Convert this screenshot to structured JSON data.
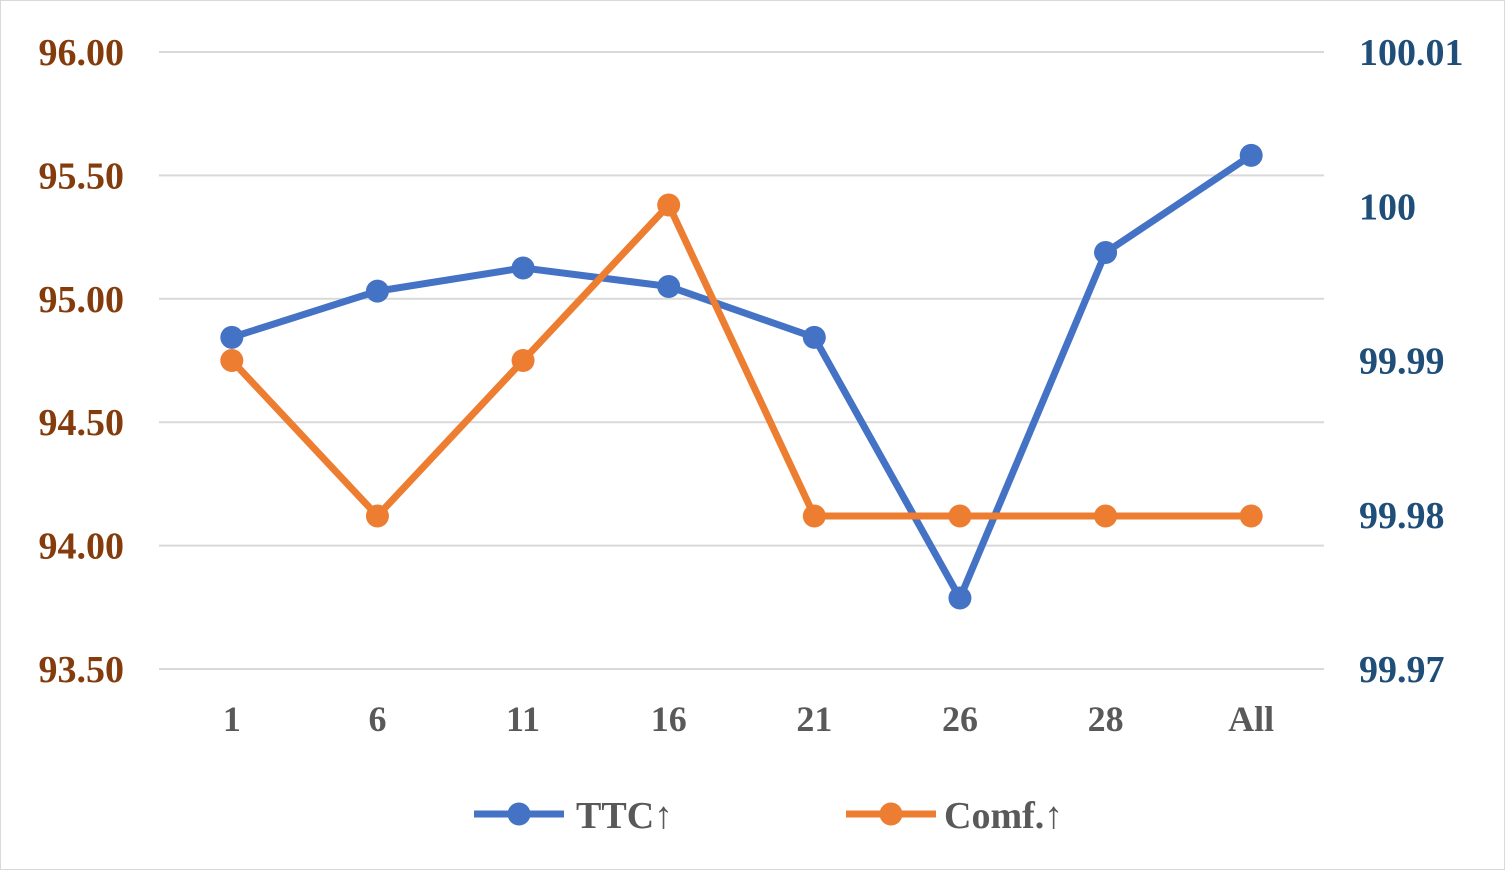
{
  "chart_data": {
    "type": "line",
    "categories": [
      "1",
      "6",
      "11",
      "16",
      "21",
      "26",
      "28",
      "All"
    ],
    "series": [
      {
        "name": "TTC↑",
        "axis": "right",
        "color": "#4472c4",
        "values": [
          99.9915,
          99.9945,
          99.996,
          99.9948,
          99.9915,
          99.9746,
          99.997,
          100.0033
        ]
      },
      {
        "name": "Comf.↑",
        "axis": "left",
        "color": "#ed7d31",
        "values": [
          94.75,
          94.12,
          94.75,
          95.38,
          94.12,
          94.12,
          94.12,
          94.12
        ]
      }
    ],
    "y_left": {
      "ylim": [
        93.5,
        96.0
      ],
      "ticks": [
        "93.50",
        "94.00",
        "94.50",
        "95.00",
        "95.50",
        "96.00"
      ],
      "color": "#843c0c"
    },
    "y_right": {
      "ylim": [
        99.97,
        100.01
      ],
      "ticks": [
        "99.97",
        "99.98",
        "99.99",
        "100",
        "100.01"
      ],
      "color": "#1f4e79"
    },
    "grid": true,
    "legend": "bottom"
  }
}
